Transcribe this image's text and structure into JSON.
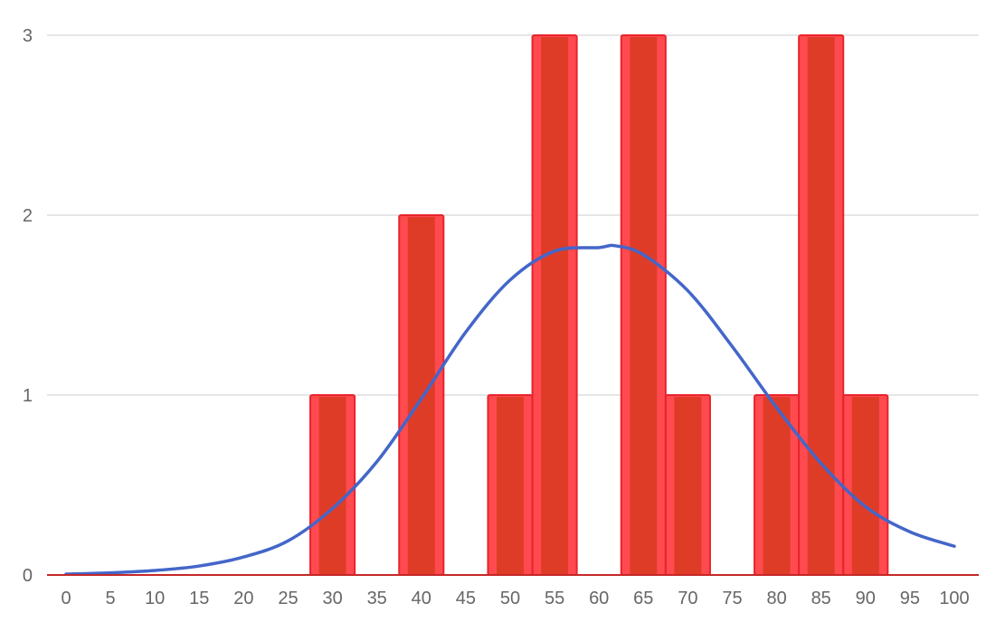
{
  "chart_data": {
    "type": "bar",
    "title": "",
    "xlabel": "",
    "ylabel": "",
    "xlim": [
      0,
      100
    ],
    "ylim": [
      0,
      3
    ],
    "grid": true,
    "x_ticks": [
      0,
      5,
      10,
      15,
      20,
      25,
      30,
      35,
      40,
      45,
      50,
      55,
      60,
      65,
      70,
      75,
      80,
      85,
      90,
      95,
      100
    ],
    "y_ticks": [
      0,
      1,
      2,
      3
    ],
    "bin_width": 5,
    "bins": [
      {
        "x": 30,
        "count": 1
      },
      {
        "x": 40,
        "count": 2
      },
      {
        "x": 50,
        "count": 1
      },
      {
        "x": 55,
        "count": 3
      },
      {
        "x": 65,
        "count": 3
      },
      {
        "x": 70,
        "count": 1
      },
      {
        "x": 80,
        "count": 1
      },
      {
        "x": 85,
        "count": 3
      },
      {
        "x": 90,
        "count": 1
      }
    ],
    "curve": {
      "type": "normal",
      "mean": 61.8,
      "peak": 1.83,
      "x": [
        0,
        5,
        10,
        15,
        20,
        25,
        30,
        35,
        40,
        45,
        50,
        55,
        60,
        61.8,
        65,
        70,
        75,
        80,
        85,
        90,
        95,
        100
      ],
      "y": [
        0.005,
        0.012,
        0.025,
        0.05,
        0.1,
        0.19,
        0.37,
        0.63,
        0.98,
        1.35,
        1.64,
        1.8,
        1.82,
        1.83,
        1.78,
        1.58,
        1.27,
        0.93,
        0.62,
        0.38,
        0.24,
        0.16
      ]
    },
    "colors": {
      "bar_fill": "#ff4a4f",
      "bar_stroke": "#e8232b",
      "bar_inner": "#db3b23",
      "curve": "#4366c9",
      "baseline": "#c62828",
      "grid": "#cccccc",
      "tick_text": "#666666"
    }
  }
}
